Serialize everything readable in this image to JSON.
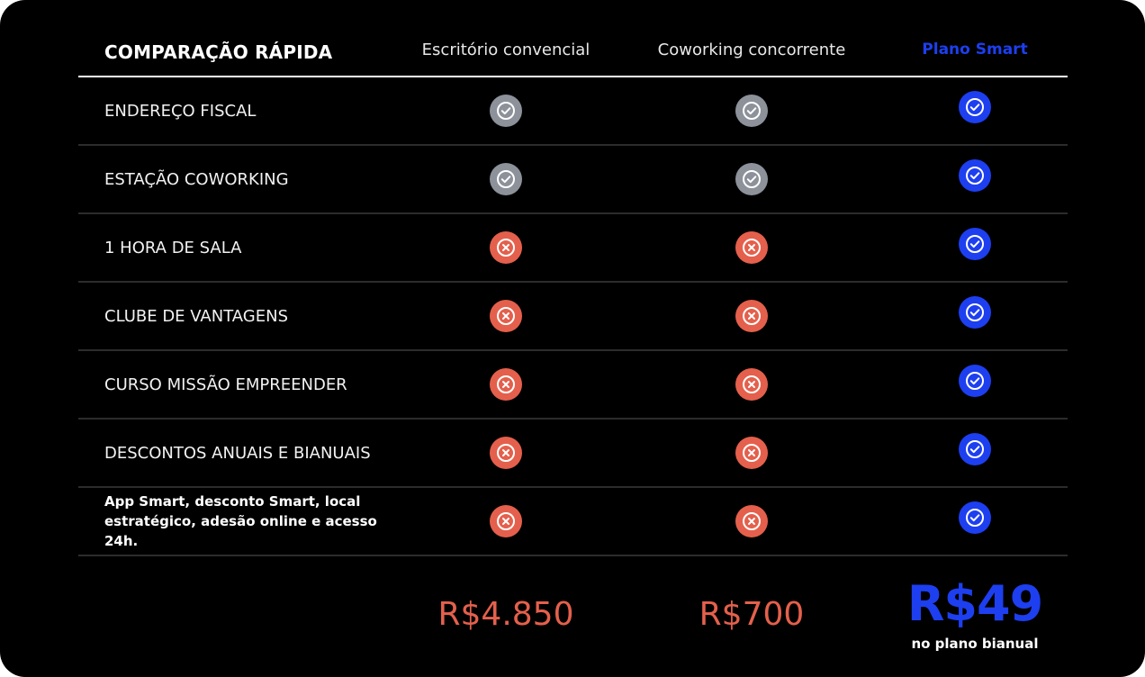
{
  "header": {
    "title": "COMPARAÇÃO RÁPIDA",
    "columns": [
      "Escritório convencial",
      "Coworking concorrente",
      "Plano Smart"
    ]
  },
  "colors": {
    "included_neutral": "#8c919a",
    "excluded": "#e4604c",
    "smart_accent": "#1d3ff0"
  },
  "rows": [
    {
      "label": "ENDEREÇO FISCAL",
      "status": [
        "check-gray",
        "check-gray",
        "check-blue"
      ]
    },
    {
      "label": "ESTAÇÃO COWORKING",
      "status": [
        "check-gray",
        "check-gray",
        "check-blue"
      ]
    },
    {
      "label": "1 HORA DE SALA",
      "status": [
        "x-red",
        "x-red",
        "check-blue"
      ]
    },
    {
      "label": "CLUBE DE VANTAGENS",
      "status": [
        "x-red",
        "x-red",
        "check-blue"
      ]
    },
    {
      "label": "CURSO MISSÃO EMPREENDER",
      "status": [
        "x-red",
        "x-red",
        "check-blue"
      ]
    },
    {
      "label": "DESCONTOS ANUAIS E BIANUAIS",
      "status": [
        "x-red",
        "x-red",
        "check-blue"
      ]
    },
    {
      "label": "App Smart, desconto Smart, local estratégico, adesão online e acesso 24h.",
      "status": [
        "x-red",
        "x-red",
        "check-blue"
      ]
    }
  ],
  "prices": {
    "office": "R$4.850",
    "coworking": "R$700",
    "smart": "R$49",
    "smart_note": "no plano bianual"
  }
}
